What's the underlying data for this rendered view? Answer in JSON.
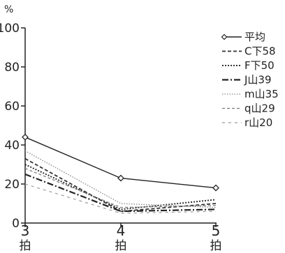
{
  "chart_data": {
    "type": "line",
    "y_unit": "%",
    "ylim": [
      0,
      100
    ],
    "y_ticks": [
      0,
      20,
      40,
      60,
      80,
      100
    ],
    "categories": [
      {
        "num": "3",
        "sub": "拍"
      },
      {
        "num": "4",
        "sub": "拍"
      },
      {
        "num": "5",
        "sub": "拍"
      }
    ],
    "grid": false,
    "legend_position": "right",
    "series": [
      {
        "name": "平均",
        "values": [
          44,
          23,
          18
        ],
        "color": "#222222",
        "style": "solid-diamond"
      },
      {
        "name": "C下58",
        "values": [
          33,
          6,
          10
        ],
        "color": "#333333",
        "style": "dashed"
      },
      {
        "name": "F下50",
        "values": [
          30,
          7,
          12
        ],
        "color": "#333333",
        "style": "dotted"
      },
      {
        "name": "J山39",
        "values": [
          25,
          6,
          7
        ],
        "color": "#222222",
        "style": "dashdot"
      },
      {
        "name": "m山35",
        "values": [
          37,
          10,
          8
        ],
        "color": "#888888",
        "style": "fine-dotted"
      },
      {
        "name": "q山29",
        "values": [
          28,
          8,
          9
        ],
        "color": "#777777",
        "style": "light-dashed"
      },
      {
        "name": "r山20",
        "values": [
          20,
          5,
          6
        ],
        "color": "#999999",
        "style": "sparse-dashed"
      }
    ]
  }
}
